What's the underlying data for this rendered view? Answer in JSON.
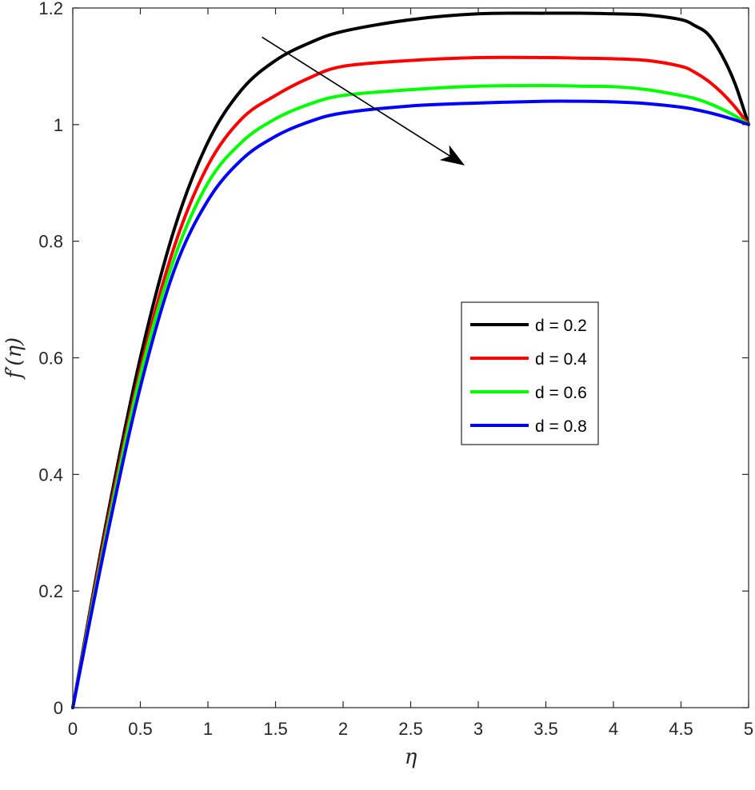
{
  "chart_data": {
    "type": "line",
    "xlabel": "η",
    "ylabel": "f′(η)",
    "xlim": [
      0,
      5
    ],
    "ylim": [
      0,
      1.2
    ],
    "xticks": [
      0,
      0.5,
      1,
      1.5,
      2,
      2.5,
      3,
      3.5,
      4,
      4.5,
      5
    ],
    "xtick_labels": [
      "0",
      "0.5",
      "1",
      "1.5",
      "2",
      "2.5",
      "3",
      "3.5",
      "4",
      "4.5",
      "5"
    ],
    "yticks": [
      0,
      0.2,
      0.4,
      0.6,
      0.8,
      1,
      1.2
    ],
    "ytick_labels": [
      "0",
      "0.2",
      "0.4",
      "0.6",
      "0.8",
      "1",
      "1.2"
    ],
    "grid": false,
    "legend_position": "center-right",
    "x": [
      0,
      0.25,
      0.5,
      0.75,
      1,
      1.25,
      1.5,
      1.75,
      2,
      2.5,
      3,
      3.5,
      3.75,
      4,
      4.25,
      4.5,
      4.6,
      4.7,
      4.8,
      4.9,
      5
    ],
    "series": [
      {
        "name": "d = 0.2",
        "color": "#000000",
        "values": [
          0,
          0.32,
          0.6,
          0.82,
          0.97,
          1.06,
          1.11,
          1.14,
          1.16,
          1.18,
          1.19,
          1.191,
          1.191,
          1.19,
          1.188,
          1.18,
          1.17,
          1.155,
          1.12,
          1.07,
          1.0
        ]
      },
      {
        "name": "d = 0.4",
        "color": "#ff0000",
        "values": [
          0,
          0.31,
          0.58,
          0.79,
          0.93,
          1.01,
          1.05,
          1.08,
          1.1,
          1.11,
          1.115,
          1.115,
          1.114,
          1.113,
          1.11,
          1.1,
          1.09,
          1.075,
          1.055,
          1.03,
          1.0
        ]
      },
      {
        "name": "d = 0.6",
        "color": "#00ff00",
        "values": [
          0,
          0.3,
          0.57,
          0.77,
          0.9,
          0.97,
          1.01,
          1.035,
          1.05,
          1.06,
          1.066,
          1.067,
          1.066,
          1.065,
          1.06,
          1.05,
          1.045,
          1.037,
          1.027,
          1.015,
          1.0
        ]
      },
      {
        "name": "d = 0.8",
        "color": "#0000ff",
        "values": [
          0,
          0.29,
          0.55,
          0.75,
          0.87,
          0.94,
          0.98,
          1.005,
          1.02,
          1.032,
          1.037,
          1.04,
          1.04,
          1.039,
          1.036,
          1.03,
          1.026,
          1.021,
          1.015,
          1.008,
          1.0
        ]
      }
    ],
    "annotation_arrow": {
      "from": [
        1.4,
        1.15
      ],
      "to": [
        2.9,
        0.93
      ]
    }
  }
}
